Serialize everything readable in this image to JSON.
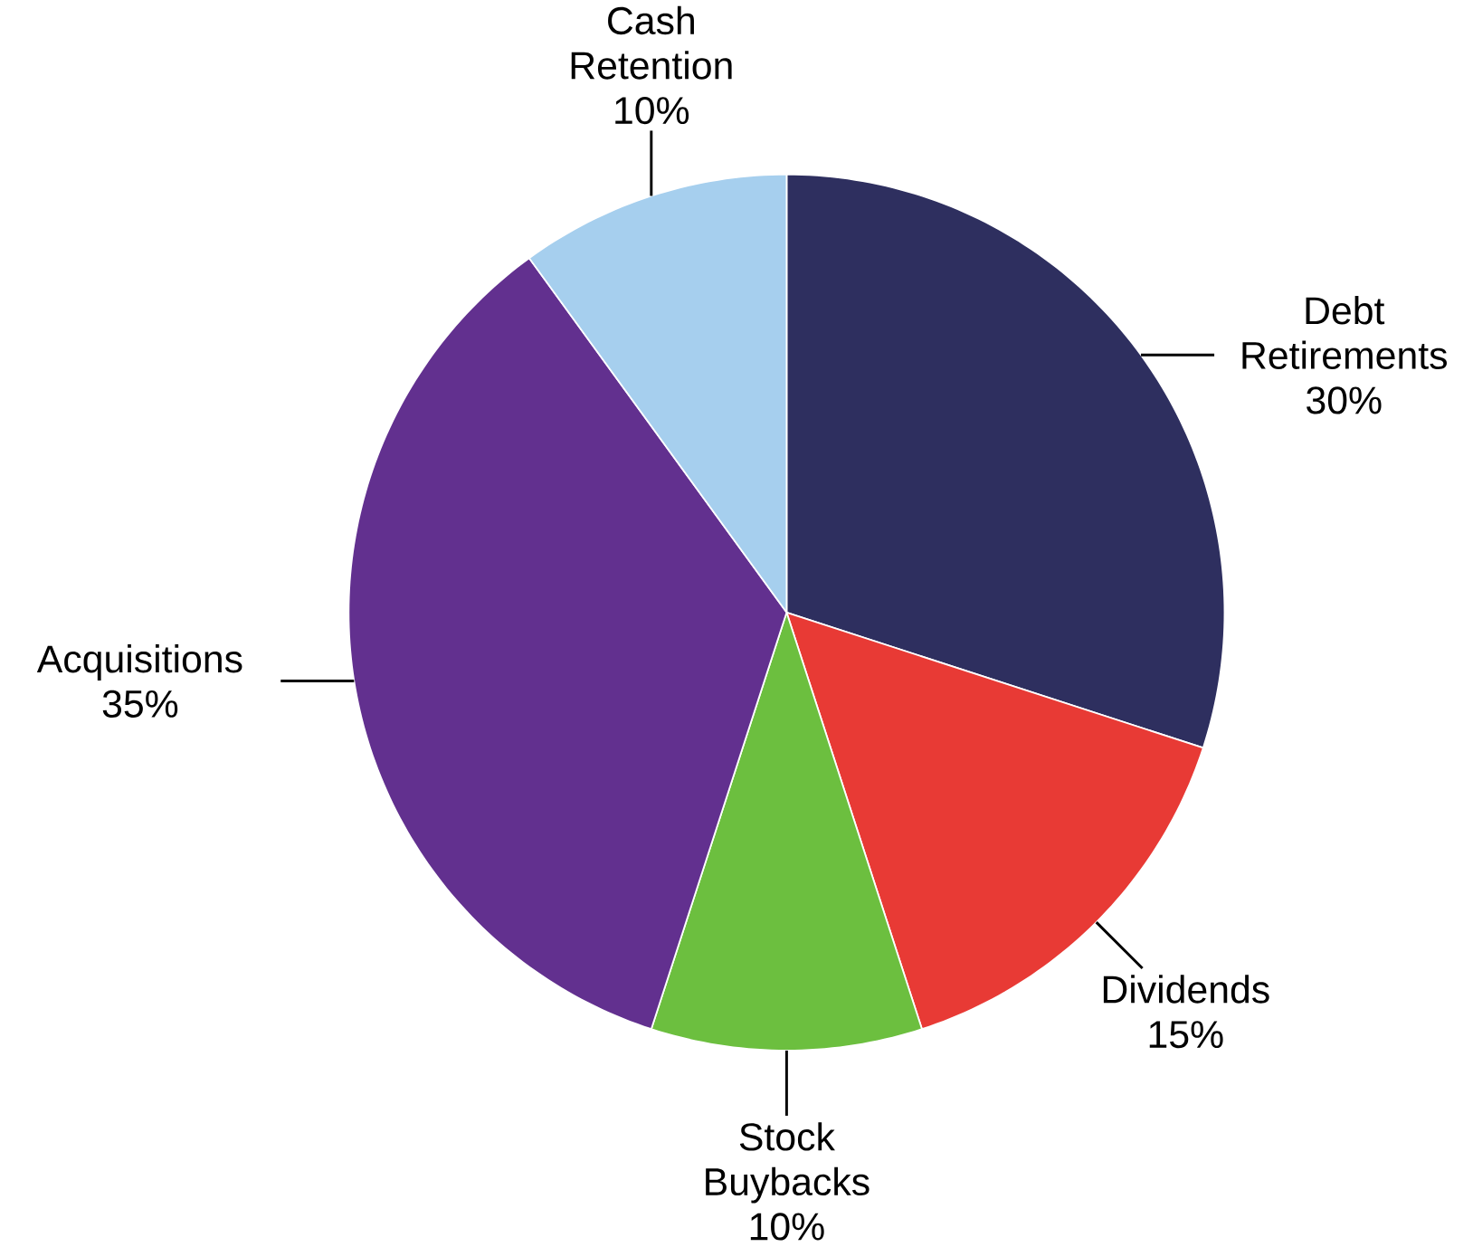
{
  "chart_data": {
    "type": "pie",
    "categories": [
      "Debt Retirements",
      "Dividends",
      "Stock Buybacks",
      "Acquisitions",
      "Cash Retention"
    ],
    "values": [
      30,
      15,
      10,
      35,
      10
    ],
    "value_labels": [
      "30%",
      "15%",
      "10%",
      "35%",
      "10%"
    ],
    "colors": [
      "#2e2f5f",
      "#e83a35",
      "#6cbf3f",
      "#62308f",
      "#a6cfee"
    ]
  }
}
